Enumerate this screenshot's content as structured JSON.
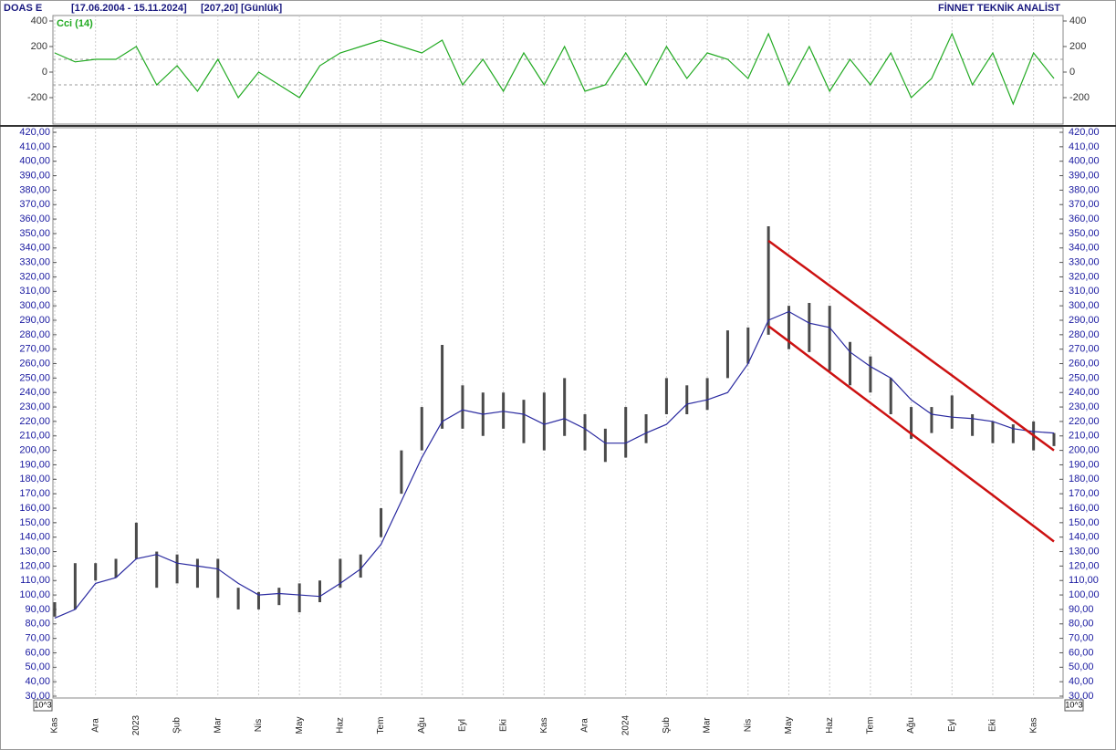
{
  "header": {
    "symbol": "DOAS  E",
    "range": "[17.06.2004 - 15.11.2024]",
    "last": "[207,20]",
    "period": "[Günlük]",
    "brand": "FİNNET TEKNİK ANALİST"
  },
  "chart_data": [
    {
      "type": "line",
      "label": "Cci (14)",
      "color": "#22aa22",
      "ylim": [
        -400,
        450
      ],
      "yticks": [
        400,
        200,
        0,
        -200
      ],
      "reference_lines": [
        100,
        -100
      ],
      "values": [
        150,
        80,
        100,
        100,
        200,
        -100,
        50,
        -150,
        100,
        -200,
        0,
        -100,
        -200,
        50,
        150,
        200,
        250,
        200,
        150,
        250,
        -100,
        100,
        -150,
        150,
        -100,
        200,
        -150,
        -100,
        150,
        -100,
        200,
        -50,
        150,
        100,
        -50,
        300,
        -100,
        200,
        -150,
        100,
        -100,
        150,
        -200,
        -50,
        300,
        -100,
        150,
        -250,
        150,
        -50
      ]
    },
    {
      "type": "range-bar",
      "axis_unit": "10^3",
      "grid": true,
      "ylim": [
        30,
        420
      ],
      "yticks": [
        {
          "value": 420,
          "label": "420,00"
        },
        {
          "value": 410,
          "label": "410,00"
        },
        {
          "value": 400,
          "label": "400,00"
        },
        {
          "value": 390,
          "label": "390,00"
        },
        {
          "value": 380,
          "label": "380,00"
        },
        {
          "value": 370,
          "label": "370,00"
        },
        {
          "value": 360,
          "label": "360,00"
        },
        {
          "value": 350,
          "label": "350,00"
        },
        {
          "value": 340,
          "label": "340,00"
        },
        {
          "value": 330,
          "label": "330,00"
        },
        {
          "value": 320,
          "label": "320,00"
        },
        {
          "value": 310,
          "label": "310,00"
        },
        {
          "value": 300,
          "label": "300,00"
        },
        {
          "value": 290,
          "label": "290,00"
        },
        {
          "value": 280,
          "label": "280,00"
        },
        {
          "value": 270,
          "label": "270,00"
        },
        {
          "value": 260,
          "label": "260,00"
        },
        {
          "value": 250,
          "label": "250,00"
        },
        {
          "value": 240,
          "label": "240,00"
        },
        {
          "value": 230,
          "label": "230,00"
        },
        {
          "value": 220,
          "label": "220,00"
        },
        {
          "value": 210,
          "label": "210,00"
        },
        {
          "value": 200,
          "label": "200,00"
        },
        {
          "value": 190,
          "label": "190,00"
        },
        {
          "value": 180,
          "label": "180,00"
        },
        {
          "value": 170,
          "label": "170,00"
        },
        {
          "value": 160,
          "label": "160,00"
        },
        {
          "value": 150,
          "label": "150,00"
        },
        {
          "value": 140,
          "label": "140,00"
        },
        {
          "value": 130,
          "label": "130,00"
        },
        {
          "value": 120,
          "label": "120,00"
        },
        {
          "value": 110,
          "label": "110,00"
        },
        {
          "value": 100,
          "label": "100,00"
        },
        {
          "value": 90,
          "label": "90,00"
        },
        {
          "value": 80,
          "label": "80,00"
        },
        {
          "value": 70,
          "label": "70,00"
        },
        {
          "value": 60,
          "label": "60,00"
        },
        {
          "value": 50,
          "label": "50,00"
        },
        {
          "value": 40,
          "label": "40,00"
        },
        {
          "value": 30,
          "label": "30,00"
        }
      ],
      "categories": [
        "Kas",
        null,
        "Ara",
        null,
        "2023",
        null,
        "Şub",
        null,
        "Mar",
        null,
        "Nis",
        null,
        "May",
        null,
        "Haz",
        null,
        "Tem",
        null,
        "Ağu",
        null,
        "Eyl",
        null,
        "Eki",
        null,
        "Kas",
        null,
        "Ara",
        null,
        "2024",
        null,
        "Şub",
        null,
        "Mar",
        null,
        "Nis",
        null,
        "May",
        null,
        "Haz",
        null,
        "Tem",
        null,
        "Ağu",
        null,
        "Eyl",
        null,
        "Eki",
        null,
        "Kas",
        null
      ],
      "price_range": {
        "color": "#4a4a4a",
        "high": [
          95,
          122,
          122,
          125,
          150,
          130,
          128,
          125,
          125,
          105,
          102,
          105,
          108,
          110,
          125,
          128,
          160,
          200,
          230,
          273,
          245,
          240,
          240,
          235,
          240,
          250,
          225,
          215,
          230,
          225,
          250,
          245,
          250,
          283,
          285,
          355,
          300,
          302,
          300,
          275,
          265,
          250,
          230,
          230,
          238,
          225,
          220,
          218,
          220,
          212
        ],
        "low": [
          85,
          90,
          110,
          112,
          125,
          105,
          108,
          105,
          98,
          90,
          90,
          93,
          88,
          95,
          105,
          112,
          140,
          170,
          200,
          215,
          215,
          210,
          215,
          205,
          200,
          210,
          200,
          192,
          195,
          205,
          225,
          225,
          228,
          250,
          260,
          280,
          270,
          268,
          255,
          245,
          240,
          225,
          208,
          212,
          215,
          210,
          205,
          205,
          200,
          203
        ]
      },
      "moving_average": {
        "color": "#2a2aa0",
        "values": [
          84,
          90,
          108,
          112,
          125,
          128,
          122,
          120,
          118,
          108,
          100,
          101,
          100,
          99,
          108,
          118,
          135,
          165,
          195,
          220,
          228,
          225,
          227,
          225,
          218,
          222,
          215,
          205,
          205,
          212,
          218,
          232,
          235,
          240,
          260,
          290,
          296,
          288,
          285,
          268,
          258,
          250,
          235,
          225,
          223,
          222,
          220,
          215,
          213,
          212
        ]
      },
      "channel": [
        {
          "color": "#cc1111",
          "values": [
            null,
            null,
            null,
            null,
            null,
            null,
            null,
            null,
            null,
            null,
            null,
            null,
            null,
            null,
            null,
            null,
            null,
            null,
            null,
            null,
            null,
            null,
            null,
            null,
            null,
            null,
            null,
            null,
            null,
            null,
            null,
            null,
            null,
            null,
            null,
            345,
            334.6,
            324.3,
            313.9,
            303.6,
            293.2,
            282.8,
            272.5,
            262.1,
            251.8,
            241.4,
            231.0,
            220.7,
            210.3,
            200.0
          ]
        },
        {
          "color": "#cc1111",
          "values": [
            null,
            null,
            null,
            null,
            null,
            null,
            null,
            null,
            null,
            null,
            null,
            null,
            null,
            null,
            null,
            null,
            null,
            null,
            null,
            null,
            null,
            null,
            null,
            null,
            null,
            null,
            null,
            null,
            null,
            null,
            null,
            null,
            null,
            null,
            null,
            286,
            275.4,
            264.7,
            254.1,
            243.4,
            232.8,
            222.2,
            211.5,
            200.9,
            190.2,
            179.6,
            169.0,
            158.3,
            147.7,
            137.0
          ]
        }
      ]
    }
  ]
}
